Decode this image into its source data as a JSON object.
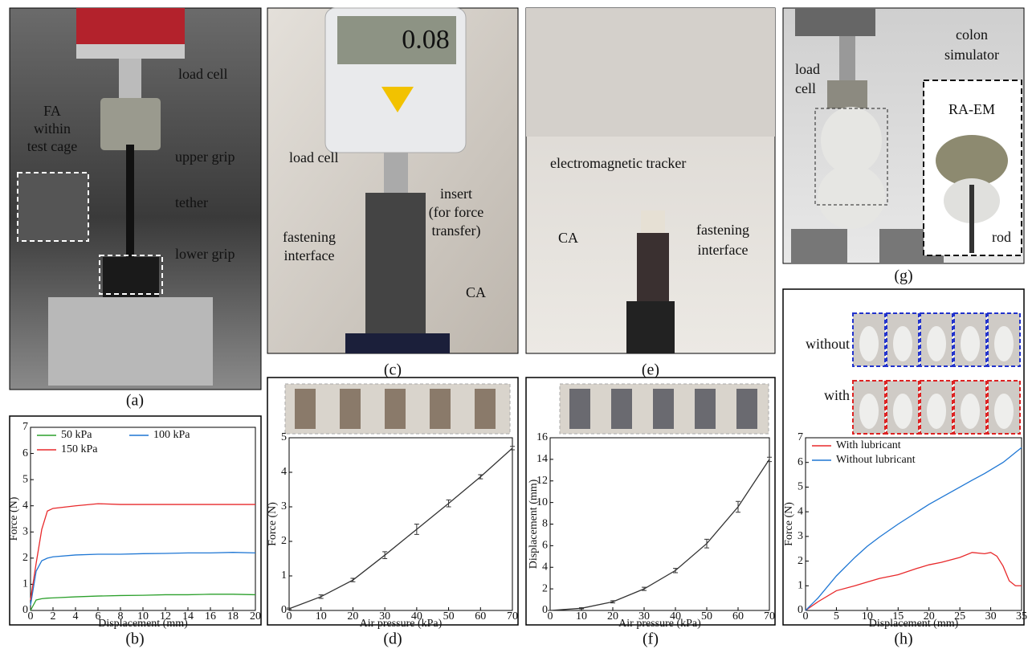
{
  "figure": {
    "panels": [
      {
        "caption": "(a)",
        "annotations": [
          "load cell",
          "FA",
          "within",
          "test cage",
          "upper grip",
          "tether",
          "lower grip"
        ]
      },
      {
        "caption": "(b)"
      },
      {
        "caption": "(c)",
        "annotations": [
          "load cell",
          "insert",
          "(for force",
          "transfer)",
          "fastening",
          "interface",
          "CA"
        ]
      },
      {
        "caption": "(d)"
      },
      {
        "caption": "(e)",
        "annotations": [
          "electromagnetic tracker",
          "CA",
          "fastening",
          "interface"
        ]
      },
      {
        "caption": "(f)"
      },
      {
        "caption": "(g)",
        "annotations": [
          "load",
          "cell",
          "colon",
          "simulator",
          "RA-EM",
          "rod"
        ]
      },
      {
        "caption": "(h)",
        "annotations": [
          "without",
          "with"
        ]
      }
    ]
  },
  "chart_data": [
    {
      "type": "line",
      "x_label": "Displacement (mm)",
      "y_label": "Force (N)",
      "x": [
        0,
        0.5,
        1,
        1.5,
        2,
        4,
        6,
        8,
        10,
        12,
        14,
        16,
        18,
        20
      ],
      "series": [
        {
          "name": "50 kPa",
          "color": "#2ca02c",
          "values": [
            0,
            0.4,
            0.45,
            0.47,
            0.48,
            0.52,
            0.55,
            0.57,
            0.58,
            0.6,
            0.6,
            0.62,
            0.62,
            0.6
          ]
        },
        {
          "name": "100 kPa",
          "color": "#1f77d4",
          "values": [
            0.2,
            1.5,
            1.9,
            2.0,
            2.05,
            2.12,
            2.15,
            2.15,
            2.17,
            2.18,
            2.2,
            2.2,
            2.22,
            2.2
          ]
        },
        {
          "name": "150 kPa",
          "color": "#e8292b",
          "values": [
            0.4,
            1.8,
            3.1,
            3.8,
            3.9,
            4.0,
            4.08,
            4.05,
            4.05,
            4.05,
            4.05,
            4.05,
            4.05,
            4.05
          ]
        }
      ],
      "xlim": [
        0,
        20
      ],
      "xticks": [
        0,
        2,
        4,
        6,
        8,
        10,
        12,
        14,
        16,
        18,
        20
      ],
      "ylim": [
        0,
        7
      ],
      "yticks": [
        0,
        1,
        2,
        3,
        4,
        5,
        6,
        7
      ],
      "legend": "upper left"
    },
    {
      "type": "line",
      "x_label": "Air pressure (kPa)",
      "y_label": "Force (N)",
      "x": [
        0,
        10,
        20,
        30,
        40,
        50,
        60,
        70
      ],
      "series": [
        {
          "color": "#333333",
          "values": [
            0.05,
            0.4,
            0.88,
            1.6,
            2.35,
            3.1,
            3.87,
            4.7
          ],
          "errors": [
            0.02,
            0.05,
            0.05,
            0.1,
            0.15,
            0.1,
            0.06,
            0.05
          ]
        }
      ],
      "xlim": [
        0,
        70
      ],
      "xticks": [
        0,
        10,
        20,
        30,
        40,
        50,
        60,
        70
      ],
      "ylim": [
        0,
        5
      ],
      "yticks": [
        0,
        1,
        2,
        3,
        4,
        5
      ]
    },
    {
      "type": "line",
      "x_label": "Air pressure (kPa)",
      "y_label": "Displacement (mm)",
      "x": [
        0,
        10,
        20,
        30,
        40,
        50,
        60,
        70
      ],
      "series": [
        {
          "color": "#333333",
          "values": [
            0,
            0.2,
            0.8,
            2.0,
            3.7,
            6.2,
            9.6,
            14
          ],
          "errors": [
            0,
            0.05,
            0.1,
            0.15,
            0.2,
            0.4,
            0.5,
            0.2
          ]
        }
      ],
      "xlim": [
        0,
        70
      ],
      "xticks": [
        0,
        10,
        20,
        30,
        40,
        50,
        60,
        70
      ],
      "ylim": [
        0,
        16
      ],
      "yticks": [
        0,
        2,
        4,
        6,
        8,
        10,
        12,
        14,
        16
      ]
    },
    {
      "type": "line",
      "x_label": "Displacement (mm)",
      "y_label": "Force (N)",
      "x": [
        0,
        2,
        5,
        8,
        10,
        12,
        15,
        18,
        20,
        22,
        25,
        27,
        29,
        30,
        31,
        32,
        33,
        34,
        35
      ],
      "series": [
        {
          "name": "With lubricant",
          "color": "#e8292b",
          "values": [
            0,
            0.35,
            0.8,
            1.0,
            1.15,
            1.3,
            1.45,
            1.7,
            1.85,
            1.95,
            2.15,
            2.35,
            2.3,
            2.35,
            2.2,
            1.8,
            1.2,
            1.0,
            1.0
          ]
        },
        {
          "name": "Without lubricant",
          "color": "#1f77d4",
          "values": [
            0,
            0.5,
            1.4,
            2.15,
            2.6,
            2.98,
            3.5,
            3.98,
            4.3,
            4.58,
            5.0,
            5.28,
            5.55,
            5.7,
            5.85,
            6.0,
            6.2,
            6.4,
            6.6
          ]
        }
      ],
      "xlim": [
        0,
        35
      ],
      "xticks": [
        0,
        5,
        10,
        15,
        20,
        25,
        30,
        35
      ],
      "ylim": [
        0,
        7
      ],
      "yticks": [
        0,
        1,
        2,
        3,
        4,
        5,
        6,
        7
      ],
      "legend": "upper left"
    }
  ]
}
